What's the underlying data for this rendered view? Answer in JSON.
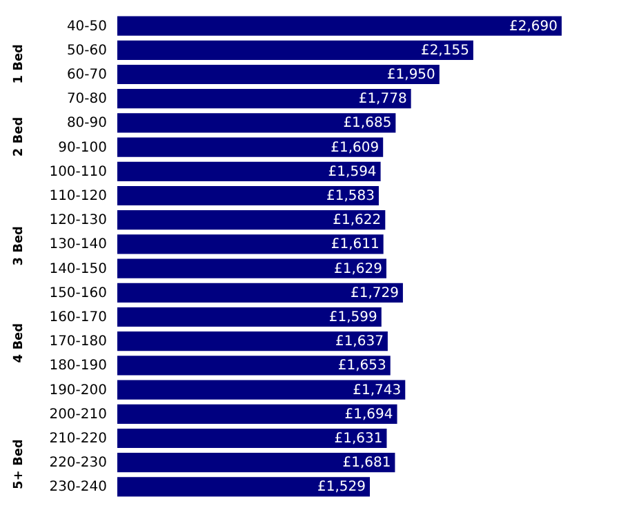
{
  "chart_data": {
    "type": "bar",
    "orientation": "horizontal",
    "data_labels": true,
    "categories": [
      "40-50",
      "50-60",
      "60-70",
      "70-80",
      "80-90",
      "90-100",
      "100-110",
      "110-120",
      "120-130",
      "130-140",
      "140-150",
      "150-160",
      "160-170",
      "170-180",
      "180-190",
      "190-200",
      "200-210",
      "210-220",
      "220-230",
      "230-240"
    ],
    "values": [
      2690,
      2155,
      1950,
      1778,
      1685,
      1609,
      1594,
      1583,
      1622,
      1611,
      1629,
      1729,
      1599,
      1637,
      1653,
      1743,
      1694,
      1631,
      1681,
      1529
    ],
    "value_labels": [
      "£2,690",
      "£2,155",
      "£1,950",
      "£1,778",
      "£1,685",
      "£1,609",
      "£1,594",
      "£1,583",
      "£1,622",
      "£1,611",
      "£1,629",
      "£1,729",
      "£1,599",
      "£1,637",
      "£1,653",
      "£1,743",
      "£1,694",
      "£1,631",
      "£1,681",
      "£1,529"
    ],
    "color": "#000080",
    "annotations": [
      "1 Bed",
      "2 Bed",
      "3 Bed",
      "4 Bed",
      "5+ Bed"
    ]
  }
}
